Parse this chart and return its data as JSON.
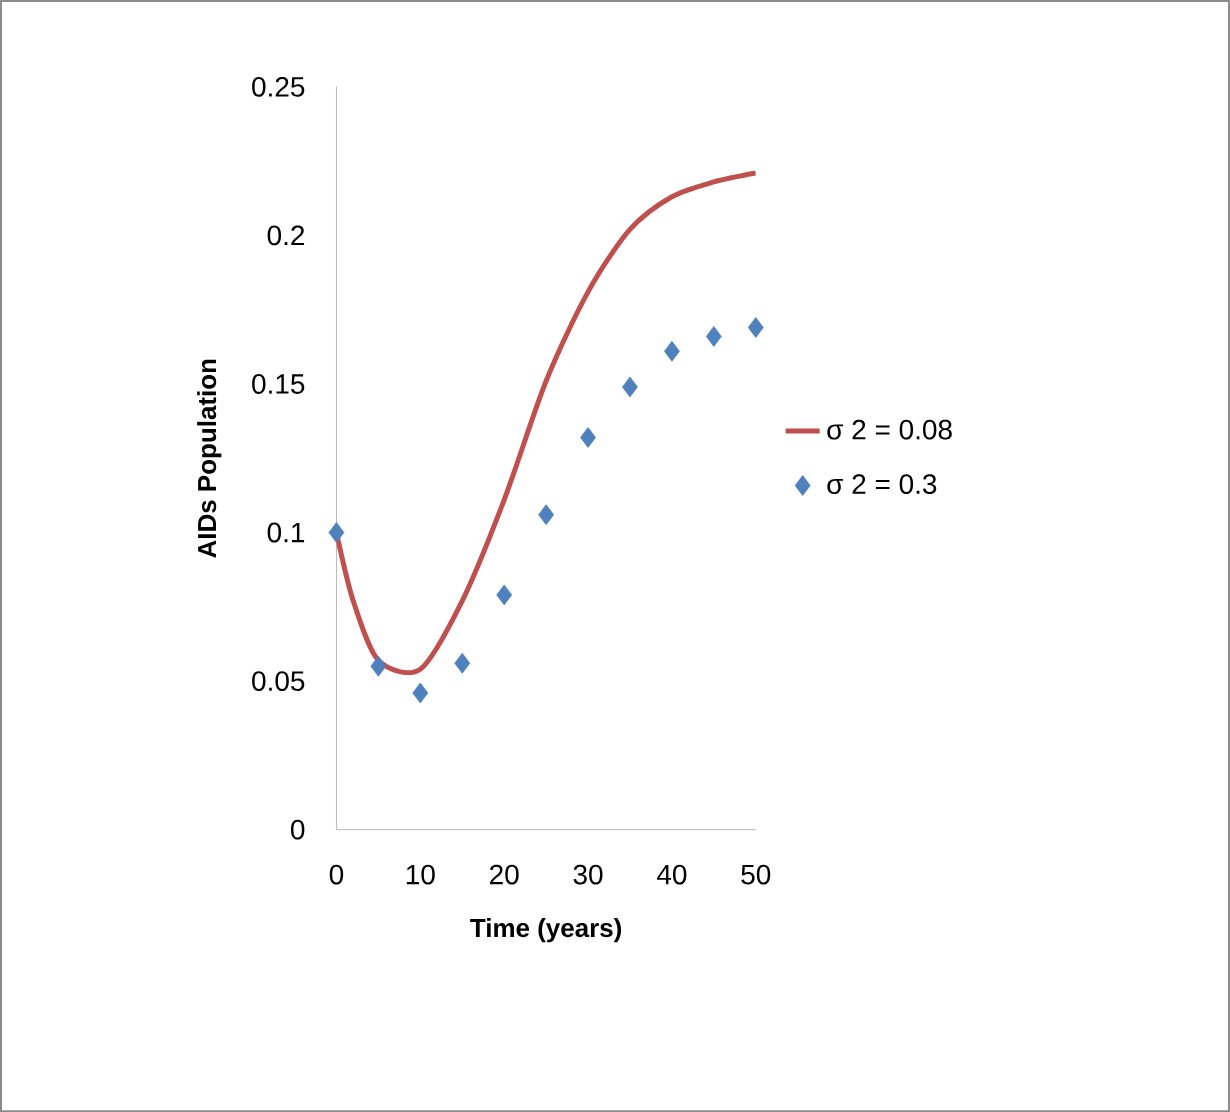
{
  "chart_data": {
    "type": "line",
    "xlabel": "Time (years)",
    "ylabel": "AIDs  Population",
    "xlim": [
      0,
      50
    ],
    "xticks": [
      0,
      10,
      20,
      30,
      40,
      50
    ],
    "ylim": [
      0,
      0.25
    ],
    "yticks": [
      0,
      0.05,
      0.1,
      0.15,
      0.2,
      0.25
    ],
    "legend": "right",
    "grid": false,
    "series": [
      {
        "name": "σ 2 = 0.08",
        "color": "#c0504d",
        "marker": "none",
        "x": [
          0,
          2,
          5,
          10,
          15,
          20,
          25,
          30,
          35,
          40,
          45,
          50
        ],
        "values": [
          0.1,
          0.077,
          0.057,
          0.054,
          0.077,
          0.111,
          0.151,
          0.181,
          0.202,
          0.213,
          0.218,
          0.221
        ]
      },
      {
        "name": "σ 2 = 0.3",
        "color": "#4f81bd",
        "type": "scatter",
        "marker": "diamond",
        "x": [
          0,
          5,
          10,
          15,
          20,
          25,
          30,
          35,
          40,
          45,
          50
        ],
        "values": [
          0.1,
          0.055,
          0.046,
          0.056,
          0.079,
          0.106,
          0.132,
          0.149,
          0.161,
          0.166,
          0.169
        ]
      }
    ]
  }
}
